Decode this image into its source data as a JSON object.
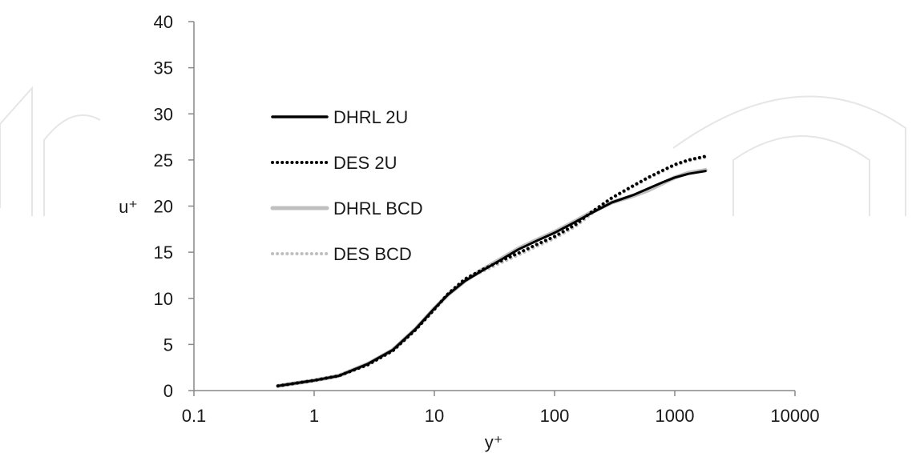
{
  "chart_data": {
    "type": "line",
    "title": "",
    "xlabel": "y⁺",
    "ylabel": "u⁺",
    "x_scale": "log",
    "xlim": [
      0.1,
      10000
    ],
    "ylim": [
      0,
      40
    ],
    "x_ticks": [
      0.1,
      1,
      10,
      100,
      1000,
      10000
    ],
    "x_tick_labels": [
      "0.1",
      "1",
      "10",
      "100",
      "1000",
      "10000"
    ],
    "y_ticks": [
      0,
      5,
      10,
      15,
      20,
      25,
      30,
      35,
      40
    ],
    "y_tick_labels": [
      "0",
      "5",
      "10",
      "15",
      "20",
      "25",
      "30",
      "35",
      "40"
    ],
    "grid": false,
    "legend_position": "top-left",
    "series": [
      {
        "name": "DHRL 2U",
        "color": "#000000",
        "style": "solid",
        "x": [
          0.5,
          1.0,
          1.6,
          2.8,
          4.5,
          7.0,
          10.0,
          13.0,
          18.0,
          25.0,
          35.0,
          50.0,
          70.0,
          100.0,
          150.0,
          200.0,
          300.0,
          450.0,
          600.0,
          800.0,
          1000.0,
          1300.0,
          1800.0
        ],
        "y": [
          0.5,
          1.1,
          1.6,
          2.9,
          4.4,
          6.7,
          8.9,
          10.4,
          11.9,
          13.0,
          14.1,
          15.3,
          16.2,
          17.1,
          18.3,
          19.2,
          20.4,
          21.2,
          21.9,
          22.6,
          23.1,
          23.5,
          23.8
        ]
      },
      {
        "name": "DES 2U",
        "color": "#000000",
        "style": "dotted",
        "x": [
          0.5,
          1.0,
          1.6,
          2.8,
          4.5,
          7.0,
          10.0,
          13.0,
          18.0,
          25.0,
          35.0,
          50.0,
          70.0,
          100.0,
          150.0,
          200.0,
          300.0,
          450.0,
          600.0,
          800.0,
          1000.0,
          1300.0,
          1800.0
        ],
        "y": [
          0.5,
          1.1,
          1.6,
          2.8,
          4.3,
          6.6,
          8.8,
          10.5,
          12.1,
          13.1,
          14.0,
          14.9,
          15.8,
          16.7,
          18.0,
          19.3,
          20.9,
          22.2,
          23.1,
          23.9,
          24.5,
          25.0,
          25.4
        ]
      },
      {
        "name": "DHRL BCD",
        "color": "#c0c0c0",
        "style": "solid",
        "x": [
          0.5,
          1.0,
          1.6,
          2.8,
          4.5,
          7.0,
          10.0,
          13.0,
          18.0,
          25.0,
          35.0,
          50.0,
          70.0,
          100.0,
          150.0,
          200.0,
          300.0,
          450.0,
          600.0,
          800.0,
          1000.0,
          1300.0,
          1800.0
        ],
        "y": [
          0.5,
          1.1,
          1.6,
          2.9,
          4.4,
          6.7,
          8.9,
          10.4,
          11.9,
          13.1,
          14.2,
          15.4,
          16.3,
          17.2,
          18.4,
          19.3,
          20.4,
          21.1,
          21.7,
          22.5,
          23.1,
          23.6,
          23.9
        ]
      },
      {
        "name": "DES BCD",
        "color": "#bfbfbf",
        "style": "dotted",
        "x": [
          0.5,
          1.0,
          1.6,
          2.8,
          4.5,
          7.0,
          10.0,
          13.0,
          18.0,
          25.0,
          35.0,
          50.0,
          70.0,
          100.0,
          150.0,
          200.0,
          300.0,
          450.0,
          600.0,
          800.0,
          1000.0,
          1300.0,
          1800.0
        ],
        "y": [
          0.5,
          1.1,
          1.6,
          2.8,
          4.3,
          6.6,
          8.8,
          10.5,
          12.0,
          12.9,
          13.8,
          14.7,
          15.6,
          16.5,
          17.8,
          19.1,
          20.8,
          22.1,
          23.0,
          23.8,
          24.4,
          24.9,
          25.3
        ]
      }
    ]
  }
}
